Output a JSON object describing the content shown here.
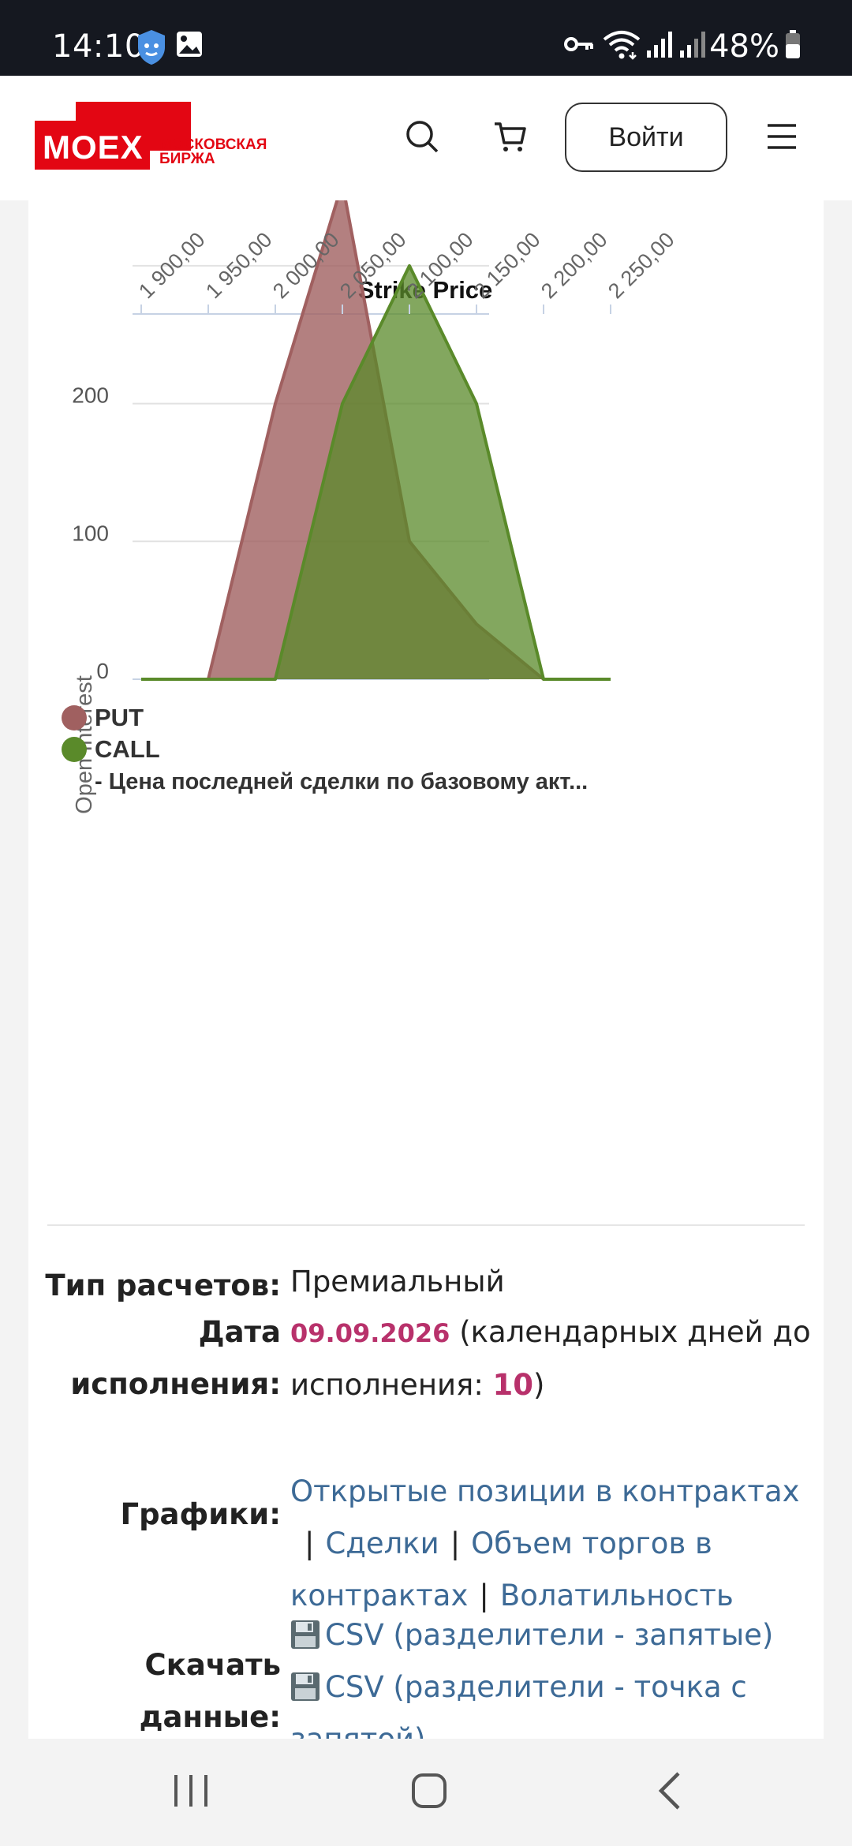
{
  "status_bar": {
    "time": "14:10",
    "battery": "48%",
    "icons": [
      "shield-icon",
      "image-icon",
      "key-icon",
      "wifi-icon",
      "signal-icon",
      "signal-icon",
      "battery-icon"
    ]
  },
  "header": {
    "logo_text": "MOEX",
    "logo_subtitle_line1": "МОСКОВСКАЯ",
    "logo_subtitle_line2": "БИРЖА",
    "login_label": "Войти",
    "icons": [
      "search-icon",
      "cart-icon",
      "menu-icon"
    ]
  },
  "chart_data": {
    "type": "area",
    "title": "Strike Price",
    "xlabel": "",
    "ylabel": "Open Interest",
    "x": [
      1900,
      1950,
      2000,
      2050,
      2100,
      2150,
      2200,
      2250
    ],
    "x_tick_labels": [
      "1 900,00",
      "1 950,00",
      "2 000,00",
      "2 050,00",
      "2 100,00",
      "2 150,00",
      "2 200,00",
      "2 250,00"
    ],
    "y_tick_labels": [
      "0",
      "100",
      "200"
    ],
    "ylim": [
      0,
      360
    ],
    "grid": true,
    "legend_position": "bottom-left",
    "series": [
      {
        "name": "PUT",
        "color": "#a06060",
        "values": [
          0,
          0,
          200,
          360,
          100,
          40,
          0,
          0
        ]
      },
      {
        "name": "CALL",
        "color": "#5a8a2a",
        "values": [
          0,
          0,
          0,
          200,
          300,
          200,
          0,
          0
        ]
      }
    ],
    "legend_extra": "- Цена последней сделки по базовому акт..."
  },
  "info": {
    "settlement_label": "Тип расчетов:",
    "settlement_value": "Премиальный",
    "date_label_1": "Дата",
    "date_label_2": "исполнения:",
    "date_value": "09.09.2026",
    "date_text_1": " (календарных дней до",
    "date_text_2": "исполнения: ",
    "days_value": "10",
    "days_close": ")",
    "charts_label": "Графики:",
    "chart_links": [
      "Открытые позиции в контрактах",
      "Сделки",
      "Объем торгов в",
      "контрактах",
      "Волатильность"
    ],
    "sep": "|",
    "download_label_1": "Скачать",
    "download_label_2": "данные:",
    "download_links": [
      "CSV (разделители - запятые)",
      "CSV (разделители - точка с",
      "запятой)"
    ]
  },
  "nav_bar": {
    "icons": [
      "recent-apps-icon",
      "home-icon",
      "back-icon"
    ]
  }
}
